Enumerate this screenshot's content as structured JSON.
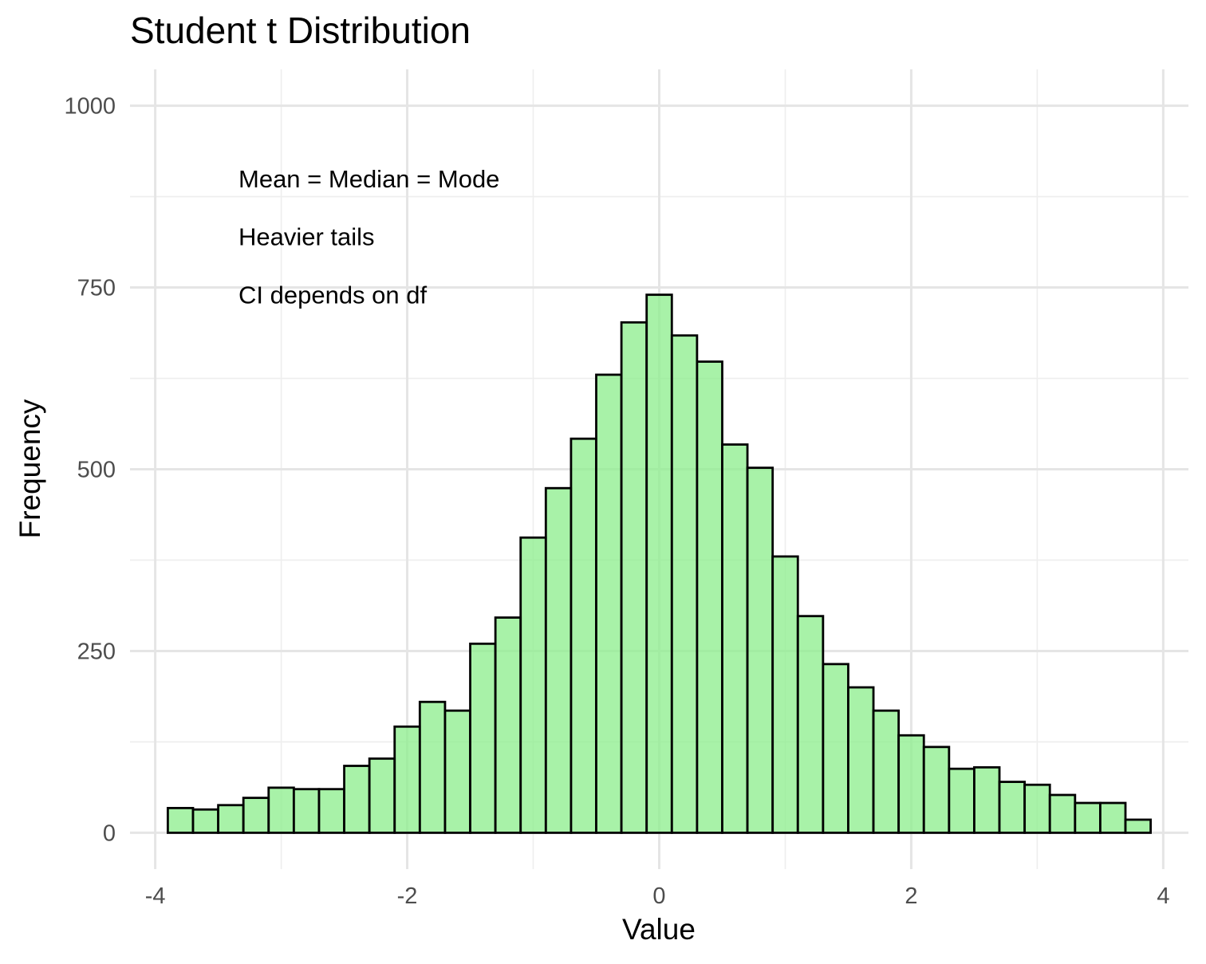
{
  "chart_data": {
    "type": "bar",
    "subtype": "histogram",
    "title": "Student t Distribution",
    "xlabel": "Value",
    "ylabel": "Frequency",
    "xlim": [
      -4.2,
      4.2
    ],
    "ylim": [
      -50,
      1050
    ],
    "x_ticks": [
      -4,
      -2,
      0,
      2,
      4
    ],
    "x_tick_labels": [
      "-4",
      "-2",
      "0",
      "2",
      "4"
    ],
    "y_ticks": [
      0,
      250,
      500,
      750,
      1000
    ],
    "y_tick_labels": [
      "0",
      "250",
      "500",
      "750",
      "1000"
    ],
    "grid": true,
    "legend": "none",
    "bar_fill": "#90ee90",
    "bar_outline": "#000000",
    "bin_width": 0.2,
    "bin_centers": [
      -3.8,
      -3.6,
      -3.4,
      -3.2,
      -3.0,
      -2.8,
      -2.6,
      -2.4,
      -2.2,
      -2.0,
      -1.8,
      -1.6,
      -1.4,
      -1.2,
      -1.0,
      -0.8,
      -0.6,
      -0.4,
      -0.2,
      0.0,
      0.2,
      0.4,
      0.6,
      0.8,
      1.0,
      1.2,
      1.4,
      1.6,
      1.8,
      2.0,
      2.2,
      2.4,
      2.6,
      2.8,
      3.0,
      3.2,
      3.4,
      3.6,
      3.8
    ],
    "values": [
      34,
      32,
      38,
      48,
      62,
      60,
      60,
      92,
      102,
      146,
      180,
      168,
      260,
      296,
      406,
      474,
      542,
      630,
      702,
      740,
      684,
      648,
      534,
      502,
      380,
      298,
      232,
      200,
      168,
      134,
      118,
      88,
      90,
      70,
      66,
      52,
      41,
      41,
      18
    ],
    "annotations": [
      "Mean = Median = Mode",
      "Heavier tails",
      "CI depends on df"
    ]
  }
}
